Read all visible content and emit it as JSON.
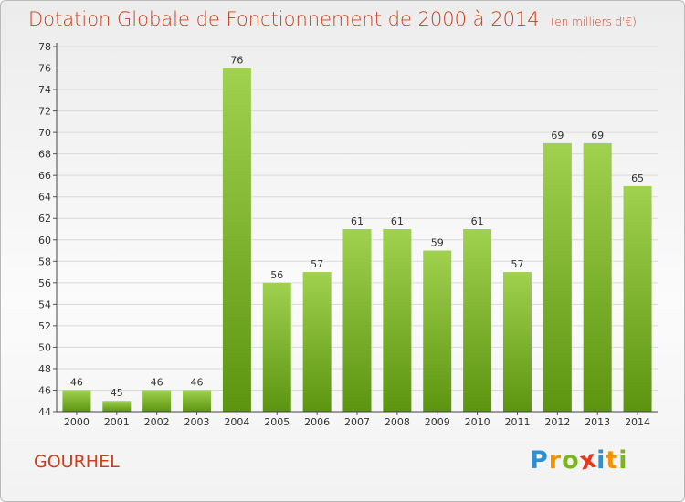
{
  "title": "Dotation Globale de Fonctionnement de 2000 à 2014",
  "subtitle": "(en milliers d'€)",
  "commune": "GOURHEL",
  "logo": {
    "letters": [
      "P",
      "r",
      "o",
      "x",
      "i",
      "t",
      "i"
    ],
    "colors": [
      "#2f8fd3",
      "#f29400",
      "#7ab51d",
      "#e23a1c",
      "#2f8fd3",
      "#f29400",
      "#7ab51d"
    ]
  },
  "colors": {
    "bar_light": "#a0d14f",
    "bar_dark": "#5c9410",
    "title": "#cc3e19",
    "grid": "#d9d9d9"
  },
  "chart_data": {
    "type": "bar",
    "title": "Dotation Globale de Fonctionnement de 2000 à 2014",
    "subtitle": "(en milliers d'€)",
    "categories": [
      "2000",
      "2001",
      "2002",
      "2003",
      "2004",
      "2005",
      "2006",
      "2007",
      "2008",
      "2009",
      "2010",
      "2011",
      "2012",
      "2013",
      "2014"
    ],
    "values": [
      46,
      45,
      46,
      46,
      76,
      56,
      57,
      61,
      61,
      59,
      61,
      57,
      69,
      69,
      65
    ],
    "ylim": [
      44,
      78
    ],
    "ytick_step": 2,
    "xlabel": "",
    "ylabel": "",
    "grid": true
  }
}
